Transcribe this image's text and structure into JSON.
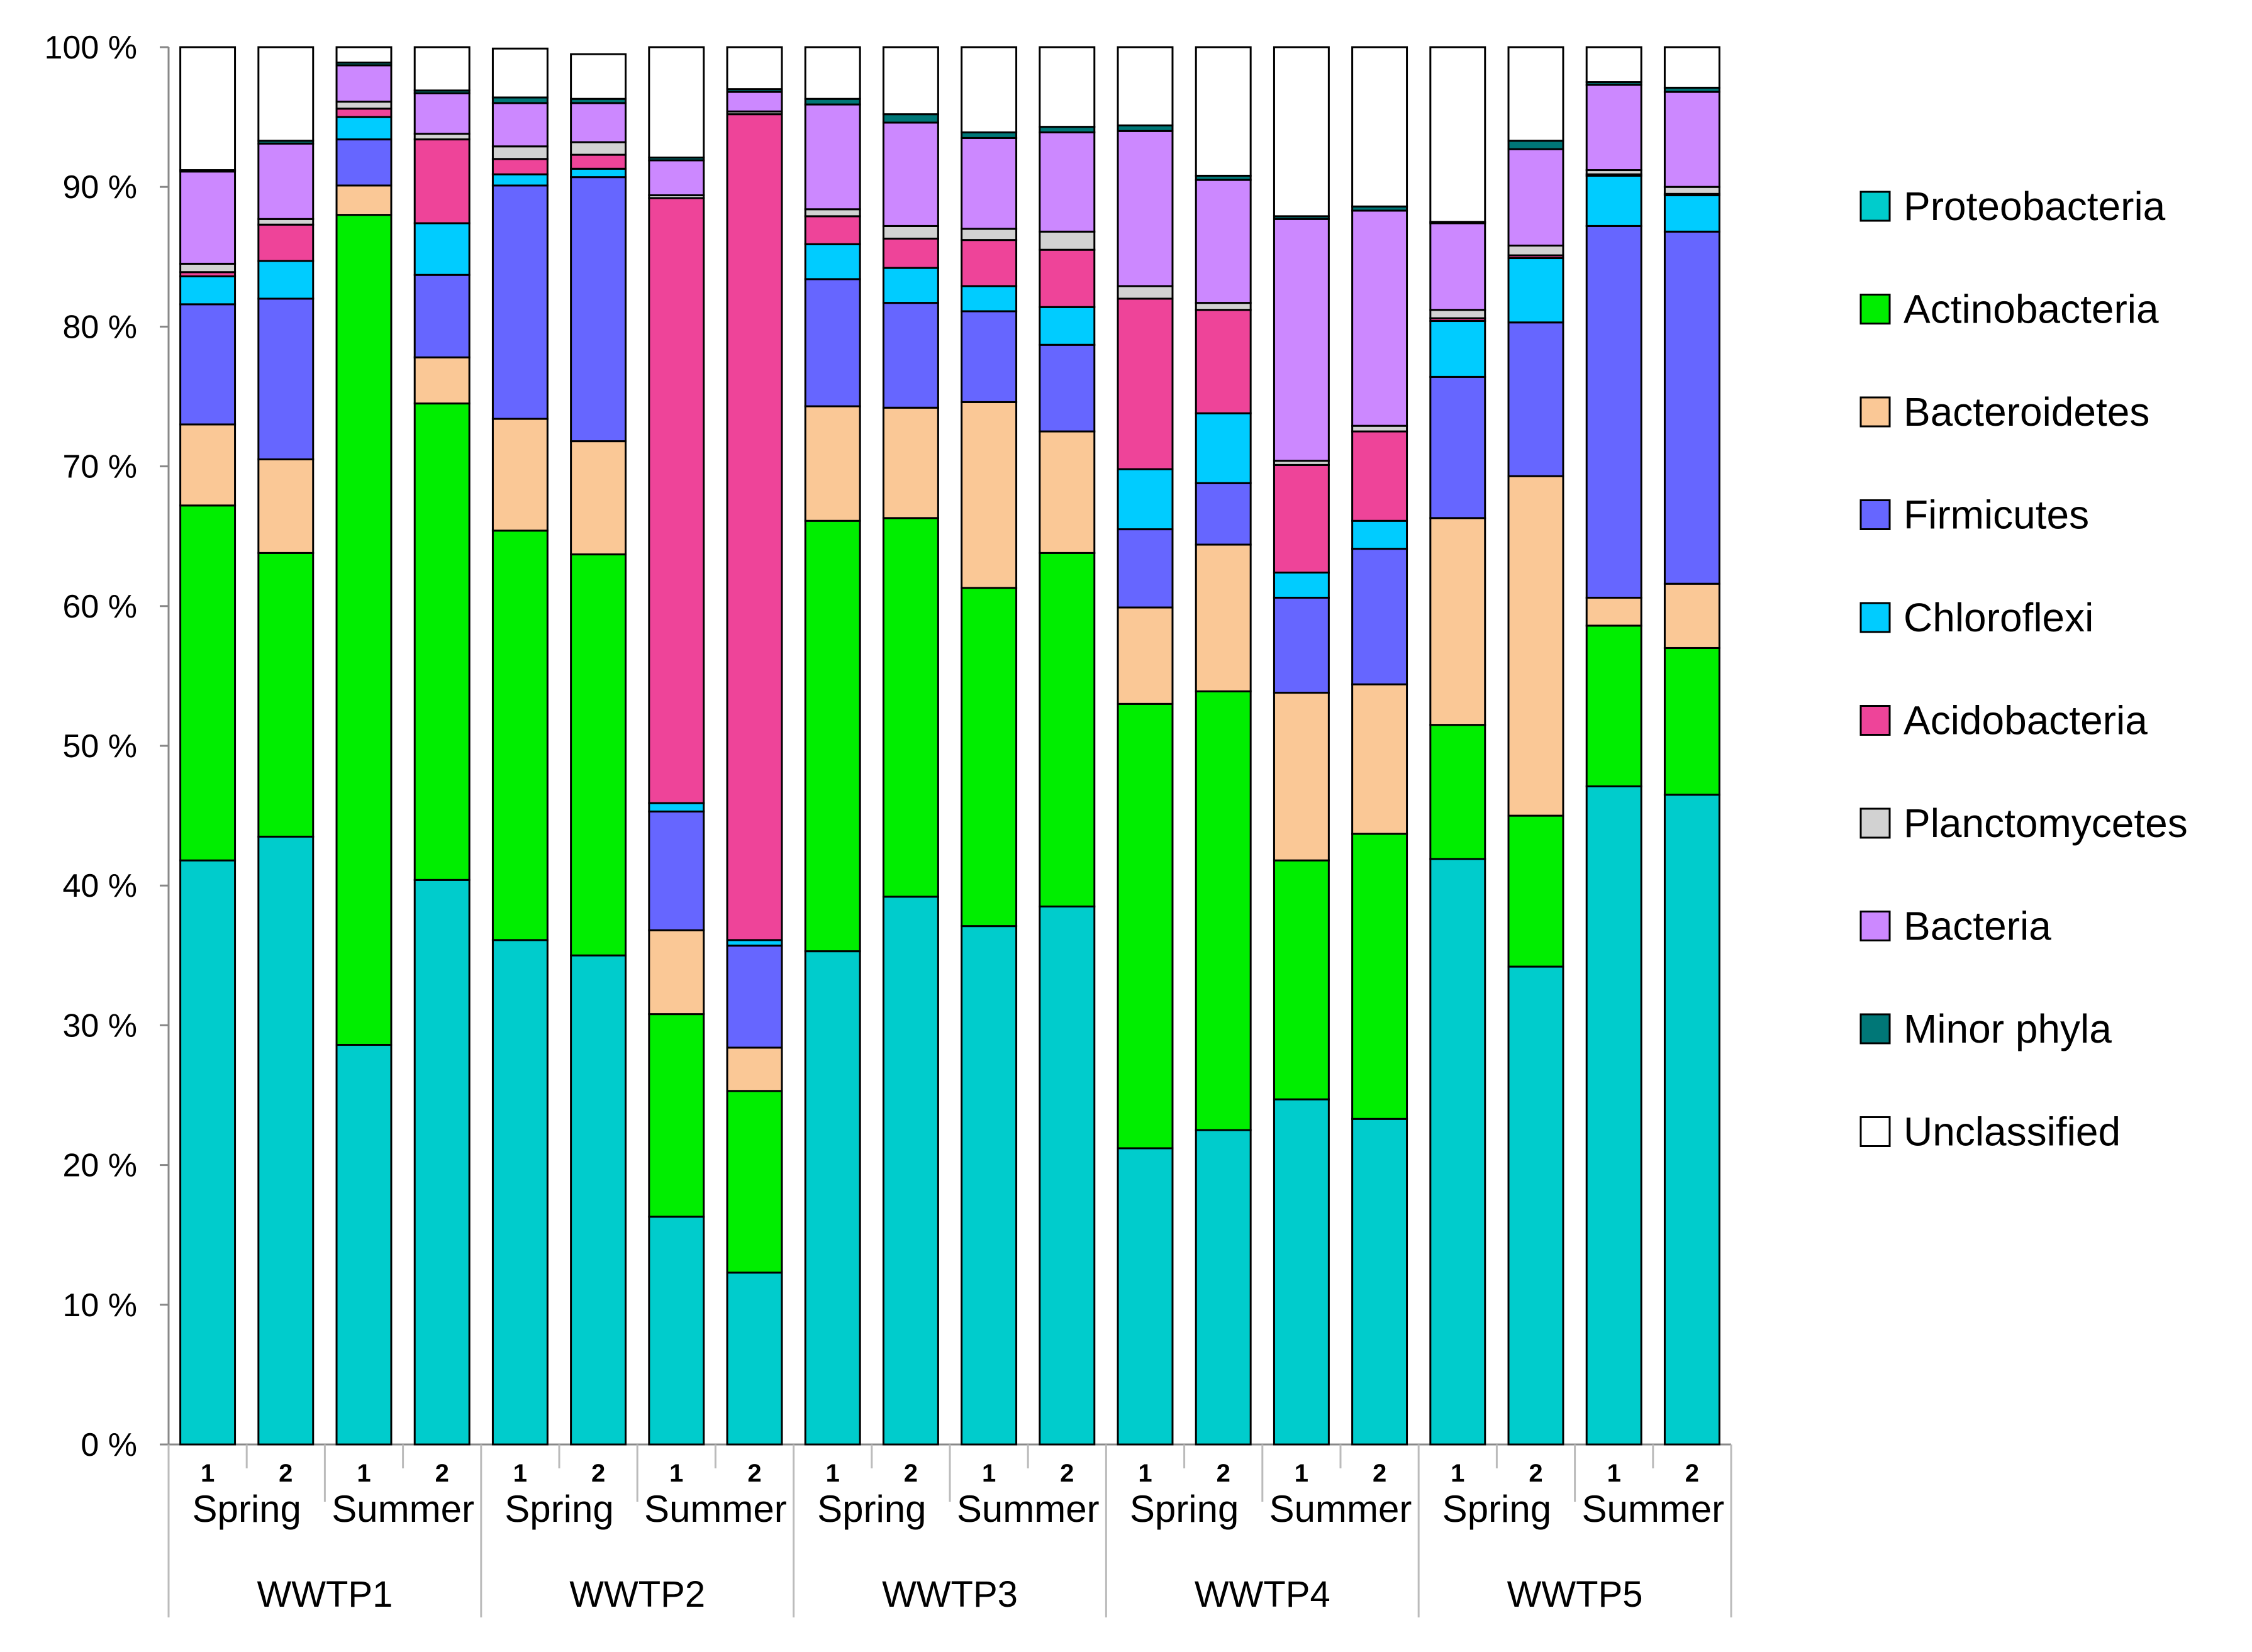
{
  "chart_data": {
    "type": "stacked-bar-100",
    "title": "",
    "xlabel": "",
    "ylabel": "",
    "ylim": [
      0,
      100
    ],
    "y_ticks": [
      "0 %",
      "10 %",
      "20 %",
      "30 %",
      "40 %",
      "50 %",
      "60 %",
      "70 %",
      "80 %",
      "90 %",
      "100 %"
    ],
    "grid": false,
    "legend_position": "right",
    "groups": [
      "WWTP1",
      "WWTP2",
      "WWTP3",
      "WWTP4",
      "WWTP5"
    ],
    "seasons": [
      "Spring",
      "Summer"
    ],
    "replicates": [
      "1",
      "2"
    ],
    "categories": [
      "WWTP1 Spring 1",
      "WWTP1 Spring 2",
      "WWTP1 Summer 1",
      "WWTP1 Summer 2",
      "WWTP2 Spring 1",
      "WWTP2 Spring 2",
      "WWTP2 Summer 1",
      "WWTP2 Summer 2",
      "WWTP3 Spring 1",
      "WWTP3 Spring 2",
      "WWTP3 Summer 1",
      "WWTP3 Summer 2",
      "WWTP4 Spring 1",
      "WWTP4 Spring 2",
      "WWTP4 Summer 1",
      "WWTP4 Summer 2",
      "WWTP5 Spring 1",
      "WWTP5 Spring 2",
      "WWTP5 Summer 1",
      "WWTP5 Summer 2"
    ],
    "series": [
      {
        "name": "Proteobacteria",
        "color": "#00CCCC",
        "values": [
          41.8,
          43.5,
          28.6,
          40.4,
          36.1,
          35.0,
          16.3,
          12.3,
          35.3,
          39.2,
          37.1,
          38.5,
          21.2,
          22.5,
          24.7,
          23.3,
          41.9,
          34.2,
          47.1,
          46.5
        ]
      },
      {
        "name": "Actinobacteria",
        "color": "#00EE00",
        "values": [
          25.4,
          20.3,
          59.4,
          34.1,
          29.3,
          28.7,
          14.5,
          13.0,
          30.8,
          27.1,
          24.2,
          25.3,
          31.8,
          31.4,
          17.1,
          20.4,
          9.6,
          10.8,
          11.5,
          10.5
        ]
      },
      {
        "name": "Bacteroidetes",
        "color": "#FAC896",
        "values": [
          5.8,
          6.7,
          2.1,
          3.3,
          8.0,
          8.1,
          6.0,
          3.1,
          8.2,
          7.9,
          13.3,
          8.7,
          6.9,
          10.5,
          12.0,
          10.7,
          14.8,
          24.3,
          2.0,
          4.6
        ]
      },
      {
        "name": "Firmicutes",
        "color": "#6666FF",
        "values": [
          8.6,
          11.5,
          3.3,
          5.9,
          16.7,
          18.9,
          8.5,
          7.3,
          9.1,
          7.5,
          6.5,
          6.2,
          5.6,
          4.4,
          6.8,
          9.7,
          10.1,
          11.0,
          26.6,
          25.2
        ]
      },
      {
        "name": "Chloroflexi",
        "color": "#00CCFF",
        "values": [
          2.0,
          2.7,
          1.6,
          3.7,
          0.8,
          0.6,
          0.6,
          0.4,
          2.5,
          2.5,
          1.8,
          2.7,
          4.3,
          5.0,
          1.8,
          2.0,
          4.0,
          4.6,
          3.6,
          2.6
        ]
      },
      {
        "name": "Acidobacteria",
        "color": "#EE4499",
        "values": [
          0.3,
          2.6,
          0.6,
          6.0,
          1.1,
          1.0,
          43.3,
          59.1,
          2.0,
          2.1,
          3.3,
          4.1,
          12.2,
          7.4,
          7.7,
          6.4,
          0.2,
          0.2,
          0.1,
          0.1
        ]
      },
      {
        "name": "Planctomycetes",
        "color": "#D2D2D2",
        "values": [
          0.6,
          0.4,
          0.5,
          0.4,
          0.9,
          0.9,
          0.2,
          0.2,
          0.5,
          0.9,
          0.8,
          1.3,
          0.9,
          0.5,
          0.3,
          0.4,
          0.6,
          0.7,
          0.3,
          0.5
        ]
      },
      {
        "name": "Bacteria",
        "color": "#CC88FF",
        "values": [
          6.6,
          5.4,
          2.6,
          2.9,
          3.1,
          2.8,
          2.5,
          1.4,
          7.5,
          7.4,
          6.5,
          7.1,
          11.1,
          8.8,
          17.3,
          15.4,
          6.2,
          6.9,
          6.1,
          6.8
        ]
      },
      {
        "name": "Minor phyla",
        "color": "#007777",
        "values": [
          0.1,
          0.2,
          0.2,
          0.2,
          0.4,
          0.3,
          0.2,
          0.2,
          0.4,
          0.6,
          0.4,
          0.4,
          0.4,
          0.3,
          0.2,
          0.3,
          0.1,
          0.6,
          0.2,
          0.3
        ]
      },
      {
        "name": "Unclassified",
        "color": "#FFFFFF",
        "values": [
          8.8,
          6.7,
          1.1,
          3.1,
          3.5,
          3.2,
          7.9,
          3.0,
          3.7,
          4.8,
          6.1,
          5.7,
          5.6,
          9.2,
          12.1,
          11.4,
          12.5,
          6.7,
          2.5,
          2.9
        ]
      }
    ]
  }
}
